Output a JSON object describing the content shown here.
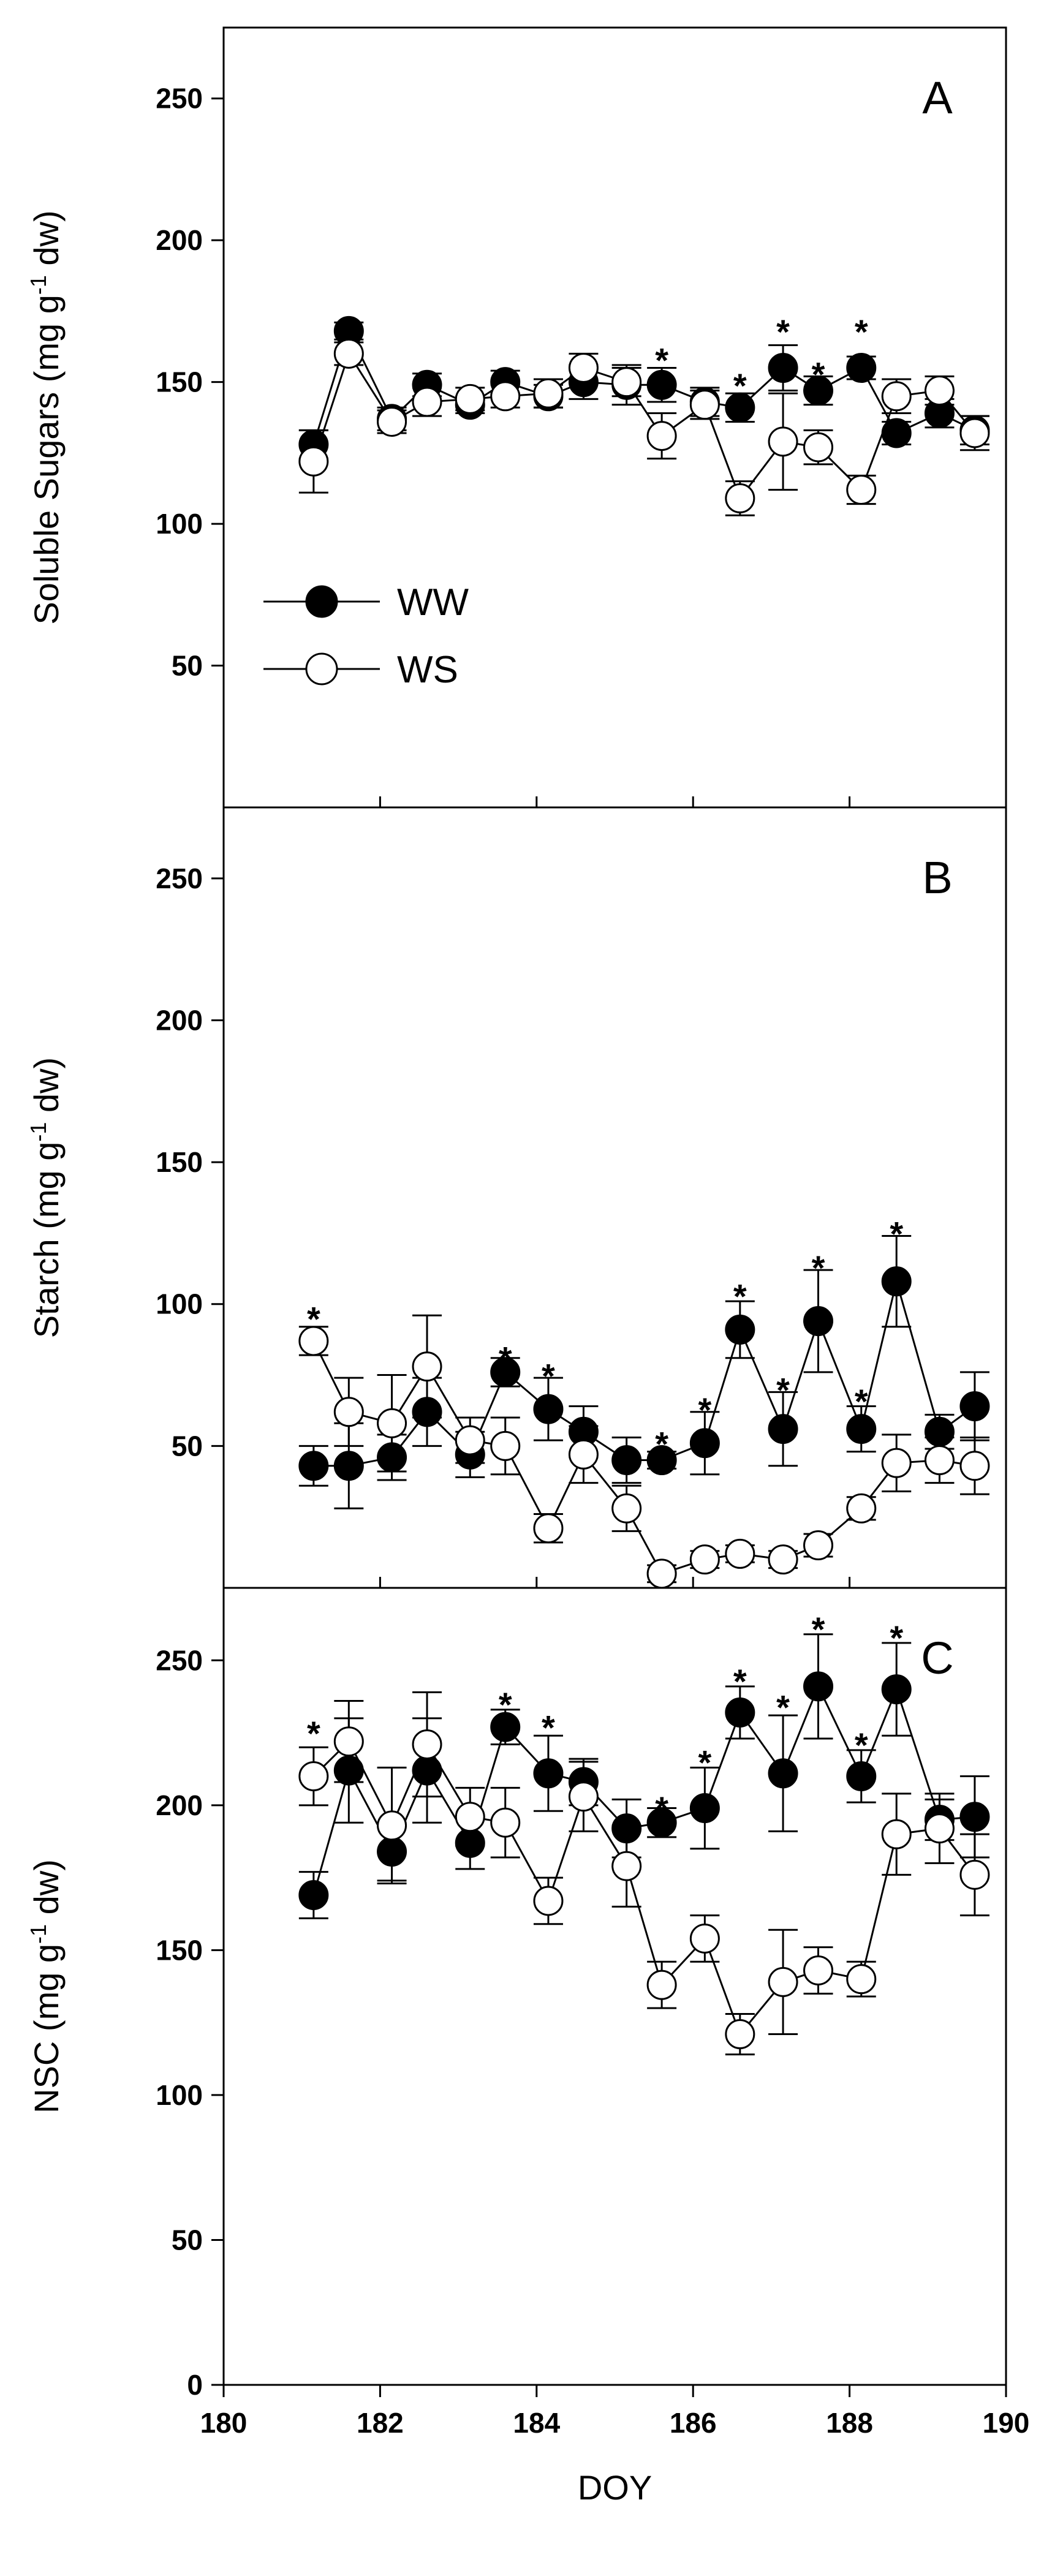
{
  "chart_data": {
    "type": "line",
    "x_label": "DOY",
    "x_ticks": [
      180,
      182,
      184,
      186,
      188,
      190
    ],
    "xlim": [
      180,
      190
    ],
    "x": [
      181.15,
      181.6,
      182.15,
      182.6,
      183.15,
      183.6,
      184.15,
      184.6,
      185.15,
      185.6,
      186.15,
      186.6,
      187.15,
      187.6,
      188.15,
      188.6,
      189.15,
      189.6
    ],
    "legend": [
      {
        "name": "WW",
        "marker": "filled-circle",
        "color": "#000000"
      },
      {
        "name": "WS",
        "marker": "open-circle",
        "color": "#ffffff"
      }
    ],
    "panels": [
      {
        "letter": "A",
        "ylabel_main": "Soluble Sugars (mg g",
        "ylabel_sup": "-1",
        "ylabel_tail": " dw)",
        "ylim": [
          0,
          275
        ],
        "y_ticks": [
          50,
          100,
          150,
          200,
          250
        ],
        "series": [
          {
            "name": "WW",
            "values": [
              128,
              168,
              137,
              149,
              142,
              150,
              145,
              150,
              149,
              149,
              143,
              141,
              155,
              147,
              155,
              132,
              139,
              133
            ],
            "err": [
              5,
              3,
              4,
              4,
              3,
              4,
              4,
              6,
              7,
              6,
              5,
              5,
              8,
              5,
              4,
              4,
              5,
              5
            ]
          },
          {
            "name": "WS",
            "values": [
              122,
              160,
              136,
              143,
              144,
              145,
              146,
              155,
              150,
              131,
              142,
              109,
              129,
              127,
              112,
              145,
              147,
              132
            ],
            "err": [
              11,
              4,
              4,
              5,
              4,
              4,
              5,
              5,
              5,
              8,
              5,
              6,
              17,
              6,
              5,
              6,
              5,
              6
            ]
          }
        ],
        "significance": [
          {
            "x": 185.6,
            "y": 160,
            "mark": "*"
          },
          {
            "x": 186.6,
            "y": 151,
            "mark": "*"
          },
          {
            "x": 187.15,
            "y": 170,
            "mark": "*"
          },
          {
            "x": 187.6,
            "y": 155,
            "mark": "*"
          },
          {
            "x": 188.15,
            "y": 170,
            "mark": "*"
          }
        ]
      },
      {
        "letter": "B",
        "ylabel_main": "Starch  (mg g",
        "ylabel_sup": "-1",
        "ylabel_tail": " dw)",
        "ylim": [
          0,
          275
        ],
        "y_ticks": [
          50,
          100,
          150,
          200,
          250
        ],
        "series": [
          {
            "name": "WW",
            "values": [
              43,
              43,
              46,
              62,
              47,
              76,
              63,
              55,
              45,
              45,
              51,
              91,
              56,
              94,
              56,
              108,
              55,
              64
            ],
            "err": [
              7,
              15,
              8,
              12,
              8,
              5,
              11,
              9,
              8,
              3,
              11,
              10,
              13,
              18,
              8,
              16,
              6,
              12
            ]
          },
          {
            "name": "WS",
            "values": [
              87,
              62,
              58,
              78,
              52,
              50,
              21,
              47,
              28,
              5,
              10,
              12,
              10,
              15,
              28,
              44,
              45,
              43
            ],
            "err": [
              5,
              12,
              17,
              18,
              8,
              10,
              5,
              10,
              8,
              3,
              3,
              3,
              3,
              4,
              4,
              10,
              8,
              10
            ]
          }
        ],
        "significance": [
          {
            "x": 181.15,
            "y": 97,
            "mark": "*"
          },
          {
            "x": 183.6,
            "y": 83,
            "mark": "*"
          },
          {
            "x": 184.15,
            "y": 77,
            "mark": "*"
          },
          {
            "x": 185.6,
            "y": 53,
            "mark": "*"
          },
          {
            "x": 186.15,
            "y": 65,
            "mark": "*"
          },
          {
            "x": 186.6,
            "y": 105,
            "mark": "*"
          },
          {
            "x": 187.15,
            "y": 72,
            "mark": "*"
          },
          {
            "x": 187.6,
            "y": 115,
            "mark": "*"
          },
          {
            "x": 188.15,
            "y": 68,
            "mark": "*"
          },
          {
            "x": 188.6,
            "y": 127,
            "mark": "*"
          }
        ]
      },
      {
        "letter": "C",
        "ylabel_main": "NSC  (mg g",
        "ylabel_sup": "-1",
        "ylabel_tail": " dw)",
        "ylim": [
          0,
          275
        ],
        "y_ticks": [
          0,
          50,
          100,
          150,
          200,
          250
        ],
        "series": [
          {
            "name": "WW",
            "values": [
              169,
              212,
              184,
              212,
              187,
              227,
              211,
              208,
              192,
              194,
              199,
              232,
              211,
              241,
              210,
              240,
              195,
              196
            ],
            "err": [
              8,
              18,
              10,
              18,
              9,
              6,
              13,
              8,
              10,
              5,
              14,
              9,
              20,
              18,
              9,
              16,
              7,
              14
            ]
          },
          {
            "name": "WS",
            "values": [
              210,
              222,
              193,
              221,
              196,
              194,
              167,
              203,
              179,
              138,
              154,
              121,
              139,
              143,
              140,
              190,
              192,
              176
            ],
            "err": [
              10,
              14,
              20,
              18,
              10,
              12,
              8,
              12,
              14,
              8,
              8,
              7,
              18,
              8,
              6,
              14,
              12,
              14
            ]
          }
        ],
        "significance": [
          {
            "x": 181.15,
            "y": 227,
            "mark": "*"
          },
          {
            "x": 183.6,
            "y": 237,
            "mark": "*"
          },
          {
            "x": 184.15,
            "y": 229,
            "mark": "*"
          },
          {
            "x": 185.6,
            "y": 201,
            "mark": "*"
          },
          {
            "x": 186.15,
            "y": 217,
            "mark": "*"
          },
          {
            "x": 186.6,
            "y": 245,
            "mark": "*"
          },
          {
            "x": 187.15,
            "y": 236,
            "mark": "*"
          },
          {
            "x": 187.6,
            "y": 263,
            "mark": "*"
          },
          {
            "x": 188.15,
            "y": 223,
            "mark": "*"
          },
          {
            "x": 188.6,
            "y": 260,
            "mark": "*"
          }
        ]
      }
    ]
  }
}
